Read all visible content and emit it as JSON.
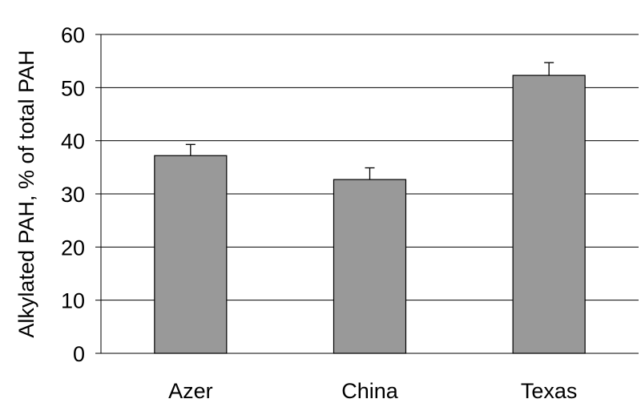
{
  "chart_data": {
    "type": "bar",
    "title": "",
    "xlabel": "",
    "ylabel": "Alkylated PAH, % of total PAH",
    "categories": [
      "Azer",
      "China",
      "Texas"
    ],
    "values": [
      37.2,
      32.7,
      52.3
    ],
    "error_bars": [
      2.1,
      2.2,
      2.4
    ],
    "ylim": [
      0,
      60
    ],
    "yticks": [
      0,
      10,
      20,
      30,
      40,
      50,
      60
    ],
    "grid": true,
    "bar_color": "#999999",
    "legend": "none"
  }
}
